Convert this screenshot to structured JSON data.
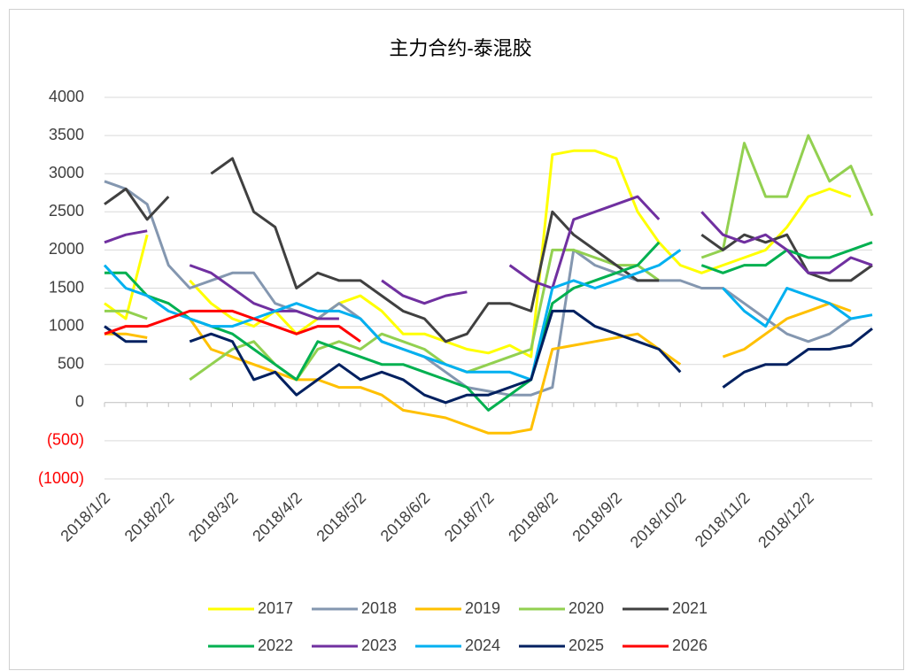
{
  "chart_data": {
    "type": "line",
    "title": "主力合约-泰混胶",
    "categories": [
      "2018/1/2",
      null,
      null,
      "2018/2/2",
      null,
      null,
      "2018/3/2",
      null,
      null,
      "2018/4/2",
      null,
      null,
      "2018/5/2",
      null,
      null,
      "2018/6/2",
      null,
      null,
      "2018/7/2",
      null,
      null,
      "2018/8/2",
      null,
      null,
      "2018/9/2",
      null,
      null,
      "2018/10/2",
      null,
      null,
      "2018/11/2",
      null,
      null,
      "2018/12/2",
      null,
      null,
      null
    ],
    "ylim": [
      -1000,
      4000
    ],
    "yticks": [
      {
        "value": -1000,
        "label": "(1000)"
      },
      {
        "value": -500,
        "label": "(500)"
      },
      0,
      500,
      1000,
      1500,
      2000,
      2500,
      3000,
      3500,
      4000
    ],
    "negative_tick_color": "#ff0000",
    "grid": true,
    "legend": "bottom",
    "series": [
      {
        "name": "2017",
        "color": "#ffff00",
        "values": [
          1300,
          1100,
          2200,
          null,
          1600,
          1300,
          1100,
          1000,
          1200,
          900,
          1100,
          1300,
          1400,
          1200,
          900,
          900,
          800,
          700,
          650,
          750,
          600,
          3250,
          3300,
          3300,
          3200,
          2500,
          2100,
          1800,
          1700,
          1800,
          1900,
          2000,
          2300,
          2700,
          2800,
          2700,
          null
        ]
      },
      {
        "name": "2018",
        "color": "#8497b0",
        "values": [
          2900,
          2800,
          2600,
          1800,
          1500,
          1600,
          1700,
          1700,
          1300,
          1200,
          1100,
          1300,
          1100,
          800,
          700,
          600,
          400,
          200,
          150,
          100,
          100,
          200,
          2000,
          1800,
          1700,
          1600,
          1600,
          1600,
          1500,
          1500,
          1300,
          1100,
          900,
          800,
          900,
          1100,
          null
        ]
      },
      {
        "name": "2019",
        "color": "#ffc000",
        "values": [
          900,
          900,
          850,
          null,
          1100,
          700,
          600,
          500,
          400,
          300,
          300,
          200,
          200,
          100,
          -100,
          -150,
          -200,
          -300,
          -400,
          -400,
          -350,
          700,
          750,
          800,
          850,
          900,
          700,
          500,
          null,
          600,
          700,
          900,
          1100,
          1200,
          1300,
          1200,
          null
        ]
      },
      {
        "name": "2020",
        "color": "#92d050",
        "values": [
          1200,
          1200,
          1100,
          null,
          300,
          500,
          700,
          800,
          500,
          300,
          700,
          800,
          700,
          900,
          800,
          700,
          500,
          400,
          500,
          600,
          700,
          2000,
          2000,
          1900,
          1800,
          1800,
          1600,
          null,
          1900,
          2000,
          3400,
          2700,
          2700,
          3500,
          2900,
          3100,
          2450
        ]
      },
      {
        "name": "2021",
        "color": "#404040",
        "values": [
          2600,
          2800,
          2400,
          2700,
          null,
          3000,
          3200,
          2500,
          2300,
          1500,
          1700,
          1600,
          1600,
          1400,
          1200,
          1100,
          800,
          900,
          1300,
          1300,
          1200,
          2500,
          2200,
          2000,
          1800,
          1600,
          1600,
          null,
          2200,
          2000,
          2200,
          2100,
          2200,
          1700,
          1600,
          1600,
          1800
        ]
      },
      {
        "name": "2022",
        "color": "#00b050",
        "values": [
          1700,
          1700,
          1400,
          1300,
          1100,
          1000,
          900,
          700,
          500,
          300,
          800,
          700,
          600,
          500,
          500,
          400,
          300,
          200,
          -100,
          100,
          300,
          1300,
          1500,
          1600,
          1700,
          1800,
          2100,
          null,
          1800,
          1700,
          1800,
          1800,
          2000,
          1900,
          1900,
          2000,
          2100
        ]
      },
      {
        "name": "2023",
        "color": "#7030a0",
        "values": [
          2100,
          2200,
          2250,
          null,
          1800,
          1700,
          1500,
          1300,
          1200,
          1200,
          1100,
          1100,
          null,
          1600,
          1400,
          1300,
          1400,
          1450,
          null,
          1800,
          1600,
          1500,
          2400,
          2500,
          2600,
          2700,
          2400,
          null,
          2500,
          2200,
          2100,
          2200,
          2000,
          1700,
          1700,
          1900,
          1800
        ]
      },
      {
        "name": "2024",
        "color": "#00b0f0",
        "values": [
          1800,
          1500,
          1400,
          1200,
          1100,
          1000,
          1000,
          1100,
          1200,
          1300,
          1200,
          1200,
          1100,
          800,
          700,
          600,
          500,
          400,
          400,
          400,
          300,
          1500,
          1600,
          1500,
          1600,
          1700,
          1800,
          2000,
          null,
          1500,
          1200,
          1000,
          1500,
          1400,
          1300,
          1100,
          1150
        ]
      },
      {
        "name": "2025",
        "color": "#002060",
        "values": [
          1000,
          800,
          800,
          null,
          800,
          900,
          800,
          300,
          400,
          100,
          300,
          500,
          300,
          400,
          300,
          100,
          0,
          100,
          100,
          200,
          300,
          1200,
          1200,
          1000,
          900,
          800,
          700,
          400,
          null,
          200,
          400,
          500,
          500,
          700,
          700,
          750,
          970
        ]
      },
      {
        "name": "2026",
        "color": "#ff0000",
        "values": [
          900,
          1000,
          1000,
          1100,
          1200,
          1200,
          1200,
          1100,
          1000,
          900,
          1000,
          1000,
          800,
          null,
          null,
          null,
          null,
          null,
          null,
          null,
          null,
          null,
          null,
          null,
          null,
          null,
          null,
          null,
          null,
          null,
          null,
          null,
          null,
          null,
          null,
          null,
          null
        ]
      }
    ]
  }
}
